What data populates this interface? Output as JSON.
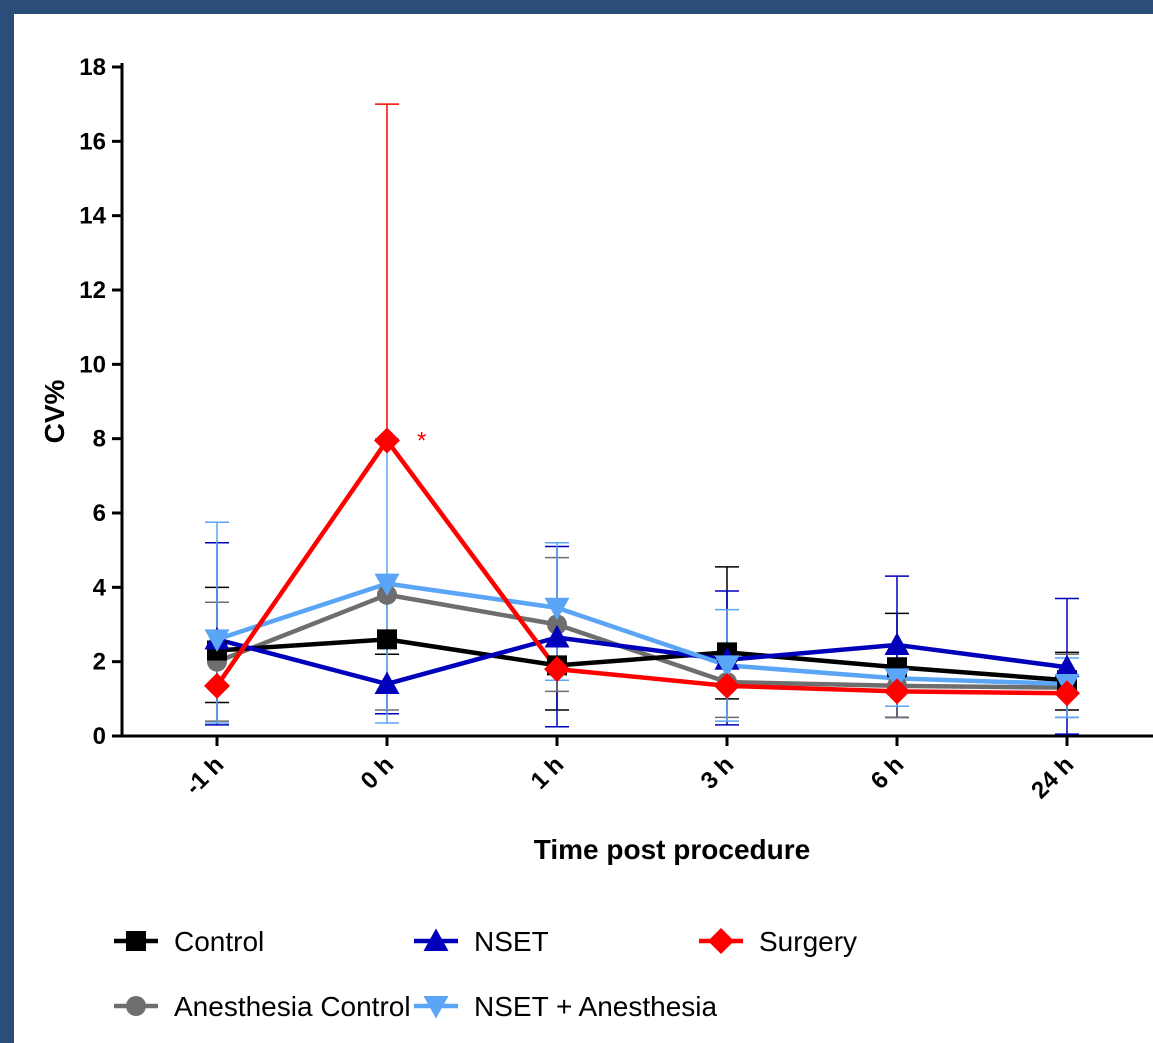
{
  "chart_data": {
    "type": "line",
    "xlabel": "Time post procedure",
    "ylabel": "CV%",
    "categories": [
      "-1 h",
      "0 h",
      "1 h",
      "3 h",
      "6 h",
      "24 h"
    ],
    "ylim": [
      0,
      18
    ],
    "yticks": [
      0,
      2,
      4,
      6,
      8,
      10,
      12,
      14,
      16,
      18
    ],
    "grid": false,
    "legend_position": "bottom",
    "series": [
      {
        "name": "Control",
        "color": "#000000",
        "marker": "square",
        "values": [
          2.3,
          2.6,
          1.9,
          2.25,
          1.85,
          1.5
        ],
        "error_upper": [
          4.0,
          2.6,
          2.6,
          4.55,
          3.3,
          2.25
        ],
        "error_lower": [
          0.9,
          2.2,
          0.7,
          1.0,
          0.5,
          0.7
        ]
      },
      {
        "name": "NSET",
        "color": "#0000bb",
        "marker": "triangle-up",
        "values": [
          2.6,
          1.4,
          2.65,
          2.05,
          2.45,
          1.85
        ],
        "error_upper": [
          5.2,
          1.4,
          5.1,
          3.9,
          4.3,
          3.7
        ],
        "error_lower": [
          0.3,
          0.6,
          0.25,
          0.3,
          0.5,
          0.05
        ]
      },
      {
        "name": "Surgery",
        "color": "#ff0000",
        "marker": "diamond",
        "values": [
          1.35,
          7.95,
          1.8,
          1.35,
          1.2,
          1.15
        ],
        "error_upper": [
          1.35,
          17.0,
          1.8,
          1.35,
          1.2,
          1.15
        ],
        "error_lower": [
          1.35,
          7.95,
          1.8,
          1.35,
          1.2,
          1.15
        ]
      },
      {
        "name": "Anesthesia Control",
        "color": "#6e6e6e",
        "marker": "circle",
        "values": [
          2.0,
          3.8,
          3.0,
          1.45,
          1.35,
          1.3
        ],
        "error_upper": [
          3.6,
          3.8,
          4.8,
          1.45,
          1.35,
          2.2
        ],
        "error_lower": [
          0.4,
          0.7,
          1.2,
          0.5,
          0.5,
          0.5
        ]
      },
      {
        "name": "NSET + Anesthesia",
        "color": "#5aa5f5",
        "marker": "triangle-down",
        "values": [
          2.6,
          4.1,
          3.45,
          1.9,
          1.55,
          1.4
        ],
        "error_upper": [
          5.75,
          8.0,
          5.2,
          3.4,
          1.55,
          2.1
        ],
        "error_lower": [
          0.35,
          0.35,
          1.5,
          0.4,
          0.8,
          0.5
        ]
      }
    ],
    "annotations": [
      {
        "text": "*",
        "category": "0 h",
        "y": 8.0,
        "color": "#ff0000"
      }
    ]
  }
}
